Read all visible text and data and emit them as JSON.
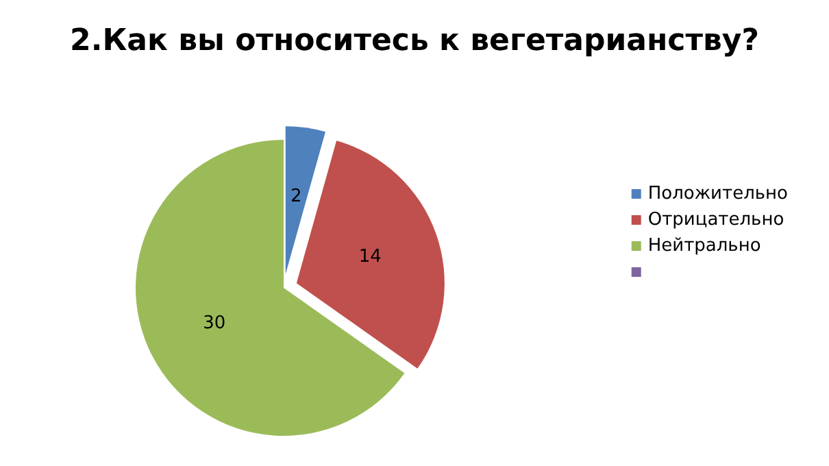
{
  "chart_data": {
    "type": "pie",
    "title": "2.Как вы относитесь к вегетарианству?",
    "categories": [
      "Положительно",
      "Отрицательно",
      "Нейтрально",
      null
    ],
    "values": [
      2,
      14,
      30,
      0
    ],
    "colors": [
      "#4f81bd",
      "#c0504d",
      "#9bbb59",
      "#8064a2"
    ],
    "data_labels": true,
    "legend": "right"
  }
}
